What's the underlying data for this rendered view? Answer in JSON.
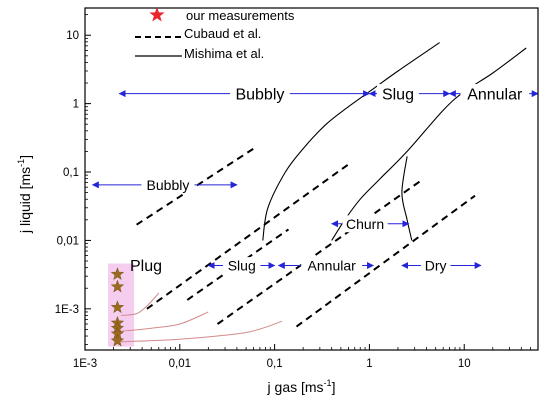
{
  "chart_data": {
    "type": "scatter",
    "title": "",
    "xlabel": "j gas [ms",
    "xlabel_unit_sup": "-1",
    "xlabel_close": "]",
    "ylabel": "j liquid [ms",
    "ylabel_unit_sup": "-1",
    "ylabel_close": "]",
    "x_scale": "log",
    "y_scale": "log",
    "xlim": [
      0.001,
      60
    ],
    "ylim": [
      0.00025,
      25
    ],
    "grid": false,
    "legend_position": "top-center",
    "x_ticks": [
      {
        "value": 0.001,
        "label": "1E-3"
      },
      {
        "value": 0.01,
        "label": "0,01"
      },
      {
        "value": 0.1,
        "label": "0,1"
      },
      {
        "value": 1,
        "label": "1"
      },
      {
        "value": 10,
        "label": "10"
      }
    ],
    "y_ticks": [
      {
        "value": 0.001,
        "label": "1E-3"
      },
      {
        "value": 0.01,
        "label": "0,01"
      },
      {
        "value": 0.1,
        "label": "0,1"
      },
      {
        "value": 1,
        "label": "1"
      },
      {
        "value": 10,
        "label": "10"
      }
    ],
    "legend": [
      {
        "label": "our measurements",
        "style": "star",
        "color": "#e8262c"
      },
      {
        "label": "Cubaud et al.",
        "style": "dashed",
        "color": "#000000"
      },
      {
        "label": "Mishima et al.",
        "style": "solid",
        "color": "#000000"
      }
    ],
    "series": [
      {
        "name": "our measurements",
        "style": "star",
        "color": "#9a6a1e",
        "points": [
          {
            "x": 0.0022,
            "y": 0.0032
          },
          {
            "x": 0.0022,
            "y": 0.0021
          },
          {
            "x": 0.0022,
            "y": 0.00105
          },
          {
            "x": 0.0022,
            "y": 0.00062
          },
          {
            "x": 0.0022,
            "y": 0.00052
          },
          {
            "x": 0.0022,
            "y": 0.00043
          },
          {
            "x": 0.0022,
            "y": 0.00034
          }
        ]
      },
      {
        "name": "Cubaud et al.",
        "style": "dashed",
        "color": "#000000",
        "lines": [
          [
            {
              "x": 0.0035,
              "y": 0.017
            },
            {
              "x": 0.06,
              "y": 0.22
            }
          ],
          [
            {
              "x": 0.0045,
              "y": 0.001
            },
            {
              "x": 0.65,
              "y": 0.14
            }
          ],
          [
            {
              "x": 0.012,
              "y": 0.00135
            },
            {
              "x": 0.14,
              "y": 0.0145
            }
          ],
          [
            {
              "x": 0.025,
              "y": 0.0006
            },
            {
              "x": 3.5,
              "y": 0.075
            }
          ],
          [
            {
              "x": 0.17,
              "y": 0.00055
            },
            {
              "x": 13,
              "y": 0.045
            }
          ]
        ]
      },
      {
        "name": "Mishima et al.",
        "style": "solid",
        "color": "#000000",
        "lines": [
          [
            {
              "x": 0.075,
              "y": 0.01
            },
            {
              "x": 0.085,
              "y": 0.03
            },
            {
              "x": 0.13,
              "y": 0.1
            },
            {
              "x": 0.2,
              "y": 0.22
            },
            {
              "x": 0.35,
              "y": 0.5
            },
            {
              "x": 0.6,
              "y": 0.9
            },
            {
              "x": 1,
              "y": 1.5
            },
            {
              "x": 2,
              "y": 3
            },
            {
              "x": 5.5,
              "y": 7.8
            }
          ],
          [
            {
              "x": 0.4,
              "y": 0.01
            },
            {
              "x": 0.55,
              "y": 0.02
            },
            {
              "x": 0.8,
              "y": 0.04
            },
            {
              "x": 1.3,
              "y": 0.08
            },
            {
              "x": 2.5,
              "y": 0.2
            },
            {
              "x": 6,
              "y": 0.8
            },
            {
              "x": 10,
              "y": 1.5
            },
            {
              "x": 20,
              "y": 2.8
            },
            {
              "x": 45,
              "y": 6.5
            }
          ],
          [
            {
              "x": 2.5,
              "y": 0.17
            },
            {
              "x": 2.2,
              "y": 0.05
            },
            {
              "x": 2.5,
              "y": 0.02
            },
            {
              "x": 2.8,
              "y": 0.01
            }
          ]
        ]
      },
      {
        "name": "",
        "style": "solid",
        "color": "#d38a8a",
        "lines": [
          [
            {
              "x": 0.0024,
              "y": 0.0008
            },
            {
              "x": 0.0035,
              "y": 0.00085
            },
            {
              "x": 0.0045,
              "y": 0.0011
            },
            {
              "x": 0.006,
              "y": 0.0017
            }
          ],
          [
            {
              "x": 0.0024,
              "y": 0.00047
            },
            {
              "x": 0.005,
              "y": 0.00052
            },
            {
              "x": 0.01,
              "y": 0.0006
            },
            {
              "x": 0.02,
              "y": 0.0009
            }
          ],
          [
            {
              "x": 0.0024,
              "y": 0.00033
            },
            {
              "x": 0.01,
              "y": 0.00036
            },
            {
              "x": 0.05,
              "y": 0.00045
            },
            {
              "x": 0.12,
              "y": 0.00066
            }
          ]
        ]
      }
    ],
    "shaded_regions": [
      {
        "x": [
          0.00175,
          0.0033
        ],
        "y": [
          0.00028,
          0.0046
        ],
        "color": "#f3c6ec"
      }
    ],
    "annotations": [
      {
        "text": "Bubbly",
        "x": 0.07,
        "y": 1.4,
        "arrow_from": 0.0023,
        "arrow_to": 1,
        "size": "lg"
      },
      {
        "text": "Slug",
        "x": 2,
        "y": 1.4,
        "arrow_from": 1,
        "arrow_to": 7,
        "size": "lg"
      },
      {
        "text": "Annular",
        "x": 21,
        "y": 1.4,
        "arrow_from": 7,
        "arrow_to": 60,
        "size": "lg"
      },
      {
        "text": "Bubbly",
        "x": 0.0075,
        "y": 0.065,
        "arrow_from": 0.0012,
        "arrow_to": 0.04,
        "size": "md"
      },
      {
        "text": "Churn",
        "x": 0.9,
        "y": 0.0175,
        "arrow_from": 0.4,
        "arrow_to": 2.6,
        "size": "md"
      },
      {
        "text": "Plug",
        "x": 0.0044,
        "y": 0.0043,
        "size": "lg"
      },
      {
        "text": "Slug",
        "x": 0.045,
        "y": 0.0043,
        "arrow_from": 0.02,
        "arrow_to": 0.1,
        "size": "md"
      },
      {
        "text": "Annular",
        "x": 0.4,
        "y": 0.0043,
        "arrow_from": 0.11,
        "arrow_to": 1.1,
        "size": "md"
      },
      {
        "text": "Dry",
        "x": 5,
        "y": 0.0043,
        "arrow_from": 2.2,
        "arrow_to": 15,
        "size": "md"
      }
    ]
  }
}
